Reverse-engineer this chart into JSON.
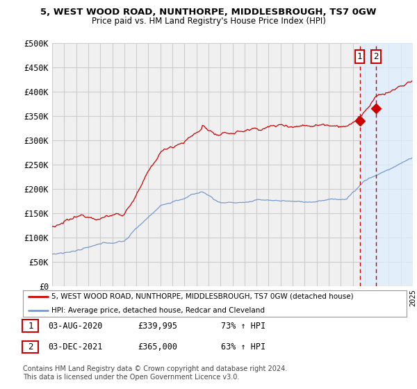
{
  "title1": "5, WEST WOOD ROAD, NUNTHORPE, MIDDLESBROUGH, TS7 0GW",
  "title2": "Price paid vs. HM Land Registry's House Price Index (HPI)",
  "ylabel_ticks": [
    "£0",
    "£50K",
    "£100K",
    "£150K",
    "£200K",
    "£250K",
    "£300K",
    "£350K",
    "£400K",
    "£450K",
    "£500K"
  ],
  "ytick_vals": [
    0,
    50000,
    100000,
    150000,
    200000,
    250000,
    300000,
    350000,
    400000,
    450000,
    500000
  ],
  "x_start_year": 1995,
  "x_end_year": 2025,
  "red_line_color": "#cc0000",
  "blue_line_color": "#7799cc",
  "background_color": "#ffffff",
  "plot_bg_color": "#f0f0f0",
  "grid_color": "#cccccc",
  "legend1": "5, WEST WOOD ROAD, NUNTHORPE, MIDDLESBROUGH, TS7 0GW (detached house)",
  "legend2": "HPI: Average price, detached house, Redcar and Cleveland",
  "point1_label": "1",
  "point1_date": "03-AUG-2020",
  "point1_price": "£339,995",
  "point1_hpi": "73% ↑ HPI",
  "point1_year": 2020.58,
  "point1_value": 339995,
  "point2_label": "2",
  "point2_date": "03-DEC-2021",
  "point2_price": "£365,000",
  "point2_hpi": "63% ↑ HPI",
  "point2_year": 2021.92,
  "point2_value": 365000,
  "footnote": "Contains HM Land Registry data © Crown copyright and database right 2024.\nThis data is licensed under the Open Government Licence v3.0.",
  "highlight_color": "#ddeeff",
  "highlight_border": "#cc0000"
}
